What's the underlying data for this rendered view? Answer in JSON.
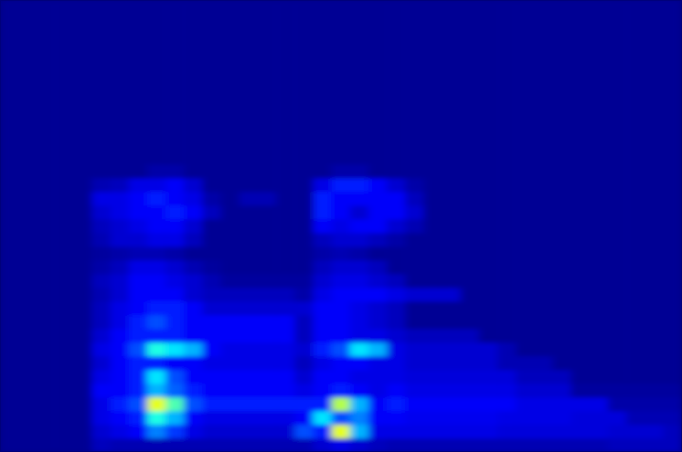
{
  "chart_data": {
    "type": "heatmap",
    "tick_labels": false,
    "color": "jet",
    "xlim": [
      0,
      37
    ],
    "ylim": [
      0,
      33
    ],
    "zlim": [
      0,
      1
    ],
    "z": [
      [
        0.02,
        0.02,
        0.02,
        0.02,
        0.02,
        0.06,
        0.05,
        0.05,
        0.05,
        0.05,
        0.05,
        0.05,
        0.05,
        0.05,
        0.05,
        0.05,
        0.05,
        0.08,
        0.1,
        0.08,
        0.06,
        0.05,
        0.05,
        0.05,
        0.05,
        0.05,
        0.05,
        0.05,
        0.05,
        0.05,
        0.05,
        0.05,
        0.05,
        0.06,
        0.06,
        0.06,
        0.06
      ],
      [
        0.02,
        0.02,
        0.02,
        0.02,
        0.02,
        0.08,
        0.1,
        0.12,
        0.25,
        0.18,
        0.1,
        0.08,
        0.08,
        0.08,
        0.08,
        0.08,
        0.2,
        0.15,
        0.6,
        0.3,
        0.1,
        0.1,
        0.1,
        0.1,
        0.1,
        0.1,
        0.1,
        0.09,
        0.09,
        0.09,
        0.09,
        0.09,
        0.09,
        0.08,
        0.08,
        0.08,
        0.06
      ],
      [
        0.02,
        0.02,
        0.02,
        0.02,
        0.02,
        0.1,
        0.12,
        0.15,
        0.4,
        0.3,
        0.12,
        0.1,
        0.1,
        0.1,
        0.1,
        0.1,
        0.12,
        0.35,
        0.2,
        0.25,
        0.12,
        0.12,
        0.11,
        0.11,
        0.11,
        0.11,
        0.11,
        0.1,
        0.1,
        0.1,
        0.1,
        0.09,
        0.09,
        0.09,
        0.05,
        0.05,
        0.05
      ],
      [
        0.02,
        0.02,
        0.02,
        0.02,
        0.02,
        0.1,
        0.15,
        0.2,
        0.6,
        0.45,
        0.2,
        0.15,
        0.15,
        0.15,
        0.15,
        0.15,
        0.15,
        0.15,
        0.55,
        0.3,
        0.12,
        0.15,
        0.12,
        0.12,
        0.12,
        0.12,
        0.12,
        0.12,
        0.1,
        0.1,
        0.1,
        0.1,
        0.1,
        0.04,
        0.04,
        0.04,
        0.04
      ],
      [
        0.02,
        0.02,
        0.02,
        0.02,
        0.02,
        0.12,
        0.12,
        0.15,
        0.3,
        0.22,
        0.15,
        0.12,
        0.12,
        0.12,
        0.12,
        0.12,
        0.1,
        0.12,
        0.15,
        0.12,
        0.1,
        0.12,
        0.1,
        0.1,
        0.1,
        0.1,
        0.1,
        0.1,
        0.08,
        0.08,
        0.08,
        0.03,
        0.03,
        0.03,
        0.03,
        0.03,
        0.03
      ],
      [
        0.02,
        0.02,
        0.02,
        0.02,
        0.02,
        0.1,
        0.12,
        0.15,
        0.35,
        0.2,
        0.12,
        0.12,
        0.12,
        0.12,
        0.12,
        0.12,
        0.08,
        0.12,
        0.12,
        0.1,
        0.1,
        0.1,
        0.09,
        0.09,
        0.09,
        0.09,
        0.09,
        0.09,
        0.06,
        0.06,
        0.06,
        0.02,
        0.02,
        0.02,
        0.02,
        0.02,
        0.02
      ],
      [
        0.02,
        0.02,
        0.02,
        0.02,
        0.02,
        0.08,
        0.12,
        0.15,
        0.15,
        0.12,
        0.12,
        0.1,
        0.1,
        0.1,
        0.1,
        0.1,
        0.06,
        0.1,
        0.12,
        0.12,
        0.1,
        0.1,
        0.08,
        0.08,
        0.08,
        0.08,
        0.08,
        0.05,
        0.05,
        0.05,
        0.02,
        0.02,
        0.02,
        0.02,
        0.02,
        0.02,
        0.02
      ],
      [
        0.02,
        0.02,
        0.02,
        0.02,
        0.02,
        0.1,
        0.12,
        0.2,
        0.4,
        0.35,
        0.3,
        0.12,
        0.1,
        0.1,
        0.1,
        0.1,
        0.08,
        0.15,
        0.2,
        0.35,
        0.3,
        0.1,
        0.08,
        0.08,
        0.08,
        0.08,
        0.08,
        0.05,
        0.02,
        0.02,
        0.02,
        0.02,
        0.02,
        0.02,
        0.02,
        0.02,
        0.02
      ],
      [
        0.02,
        0.02,
        0.02,
        0.02,
        0.02,
        0.08,
        0.12,
        0.15,
        0.15,
        0.15,
        0.12,
        0.12,
        0.12,
        0.12,
        0.12,
        0.12,
        0.06,
        0.12,
        0.12,
        0.1,
        0.1,
        0.08,
        0.06,
        0.06,
        0.06,
        0.06,
        0.02,
        0.02,
        0.02,
        0.02,
        0.02,
        0.02,
        0.02,
        0.02,
        0.02,
        0.02,
        0.02
      ],
      [
        0.02,
        0.02,
        0.02,
        0.02,
        0.02,
        0.06,
        0.1,
        0.15,
        0.2,
        0.15,
        0.12,
        0.12,
        0.12,
        0.12,
        0.12,
        0.12,
        0.06,
        0.12,
        0.12,
        0.1,
        0.08,
        0.06,
        0.02,
        0.02,
        0.02,
        0.02,
        0.02,
        0.02,
        0.02,
        0.02,
        0.02,
        0.02,
        0.02,
        0.02,
        0.02,
        0.02,
        0.02
      ],
      [
        0.02,
        0.02,
        0.02,
        0.02,
        0.02,
        0.06,
        0.1,
        0.12,
        0.15,
        0.15,
        0.12,
        0.08,
        0.08,
        0.08,
        0.08,
        0.08,
        0.08,
        0.12,
        0.12,
        0.1,
        0.08,
        0.06,
        0.02,
        0.02,
        0.02,
        0.02,
        0.02,
        0.02,
        0.02,
        0.02,
        0.02,
        0.02,
        0.02,
        0.02,
        0.02,
        0.02,
        0.02
      ],
      [
        0.02,
        0.02,
        0.02,
        0.02,
        0.02,
        0.05,
        0.08,
        0.12,
        0.12,
        0.12,
        0.08,
        0.06,
        0.06,
        0.06,
        0.06,
        0.06,
        0.04,
        0.1,
        0.12,
        0.12,
        0.12,
        0.1,
        0.08,
        0.08,
        0.08,
        0.02,
        0.02,
        0.02,
        0.02,
        0.02,
        0.02,
        0.02,
        0.02,
        0.02,
        0.02,
        0.02,
        0.02
      ],
      [
        0.02,
        0.02,
        0.02,
        0.02,
        0.02,
        0.06,
        0.08,
        0.12,
        0.12,
        0.1,
        0.08,
        0.05,
        0.03,
        0.03,
        0.03,
        0.03,
        0.03,
        0.08,
        0.1,
        0.1,
        0.08,
        0.06,
        0.02,
        0.02,
        0.02,
        0.02,
        0.02,
        0.02,
        0.02,
        0.02,
        0.02,
        0.02,
        0.02,
        0.02,
        0.02,
        0.02,
        0.02
      ],
      [
        0.02,
        0.02,
        0.02,
        0.02,
        0.02,
        0.04,
        0.06,
        0.1,
        0.1,
        0.08,
        0.05,
        0.03,
        0.02,
        0.02,
        0.02,
        0.02,
        0.02,
        0.06,
        0.08,
        0.08,
        0.06,
        0.02,
        0.02,
        0.02,
        0.02,
        0.02,
        0.02,
        0.02,
        0.02,
        0.02,
        0.02,
        0.02,
        0.02,
        0.02,
        0.02,
        0.02,
        0.02
      ],
      [
        0.02,
        0.02,
        0.02,
        0.02,
        0.02,
        0.03,
        0.04,
        0.05,
        0.05,
        0.04,
        0.02,
        0.02,
        0.02,
        0.02,
        0.02,
        0.02,
        0.02,
        0.04,
        0.05,
        0.04,
        0.02,
        0.02,
        0.02,
        0.02,
        0.02,
        0.02,
        0.02,
        0.02,
        0.02,
        0.02,
        0.02,
        0.02,
        0.02,
        0.02,
        0.02,
        0.02,
        0.02
      ],
      [
        0.02,
        0.02,
        0.02,
        0.02,
        0.02,
        0.05,
        0.08,
        0.08,
        0.1,
        0.1,
        0.06,
        0.02,
        0.02,
        0.02,
        0.02,
        0.02,
        0.02,
        0.06,
        0.08,
        0.08,
        0.06,
        0.04,
        0.02,
        0.02,
        0.02,
        0.02,
        0.02,
        0.02,
        0.02,
        0.02,
        0.02,
        0.02,
        0.02,
        0.02,
        0.02,
        0.02,
        0.02
      ],
      [
        0.02,
        0.02,
        0.02,
        0.02,
        0.02,
        0.06,
        0.08,
        0.1,
        0.12,
        0.12,
        0.08,
        0.02,
        0.02,
        0.02,
        0.02,
        0.02,
        0.02,
        0.12,
        0.1,
        0.12,
        0.12,
        0.08,
        0.05,
        0.02,
        0.02,
        0.02,
        0.02,
        0.02,
        0.02,
        0.02,
        0.02,
        0.02,
        0.02,
        0.02,
        0.02,
        0.02,
        0.02
      ],
      [
        0.02,
        0.02,
        0.02,
        0.02,
        0.02,
        0.08,
        0.1,
        0.12,
        0.12,
        0.15,
        0.12,
        0.06,
        0.02,
        0.02,
        0.02,
        0.02,
        0.02,
        0.15,
        0.12,
        0.08,
        0.12,
        0.12,
        0.08,
        0.02,
        0.02,
        0.02,
        0.02,
        0.02,
        0.02,
        0.02,
        0.02,
        0.02,
        0.02,
        0.02,
        0.02,
        0.02,
        0.02
      ],
      [
        0.02,
        0.02,
        0.02,
        0.02,
        0.02,
        0.1,
        0.1,
        0.12,
        0.15,
        0.12,
        0.1,
        0.04,
        0.02,
        0.05,
        0.05,
        0.02,
        0.02,
        0.15,
        0.12,
        0.12,
        0.12,
        0.12,
        0.06,
        0.02,
        0.02,
        0.02,
        0.02,
        0.02,
        0.02,
        0.02,
        0.02,
        0.02,
        0.02,
        0.02,
        0.02,
        0.02,
        0.02
      ],
      [
        0.02,
        0.02,
        0.02,
        0.02,
        0.02,
        0.05,
        0.06,
        0.1,
        0.1,
        0.12,
        0.08,
        0.02,
        0.02,
        0.02,
        0.02,
        0.02,
        0.02,
        0.1,
        0.15,
        0.15,
        0.12,
        0.08,
        0.04,
        0.02,
        0.02,
        0.02,
        0.02,
        0.02,
        0.02,
        0.02,
        0.02,
        0.02,
        0.02,
        0.02,
        0.02,
        0.02,
        0.02
      ],
      [
        0.02,
        0.02,
        0.02,
        0.02,
        0.02,
        0.02,
        0.02,
        0.02,
        0.04,
        0.04,
        0.02,
        0.02,
        0.02,
        0.02,
        0.02,
        0.02,
        0.02,
        0.02,
        0.04,
        0.04,
        0.02,
        0.02,
        0.02,
        0.02,
        0.02,
        0.02,
        0.02,
        0.02,
        0.02,
        0.02,
        0.02,
        0.02,
        0.02,
        0.02,
        0.02,
        0.02,
        0.02
      ],
      [
        0.02,
        0.02,
        0.02,
        0.02,
        0.02,
        0.02,
        0.02,
        0.02,
        0.02,
        0.02,
        0.02,
        0.02,
        0.02,
        0.02,
        0.02,
        0.02,
        0.02,
        0.02,
        0.02,
        0.02,
        0.02,
        0.02,
        0.02,
        0.02,
        0.02,
        0.02,
        0.02,
        0.02,
        0.02,
        0.02,
        0.02,
        0.02,
        0.02,
        0.02,
        0.02,
        0.02,
        0.02
      ],
      [
        0.02,
        0.02,
        0.02,
        0.02,
        0.02,
        0.02,
        0.02,
        0.02,
        0.02,
        0.02,
        0.02,
        0.02,
        0.02,
        0.02,
        0.02,
        0.02,
        0.02,
        0.02,
        0.02,
        0.02,
        0.02,
        0.02,
        0.02,
        0.02,
        0.02,
        0.02,
        0.02,
        0.02,
        0.02,
        0.02,
        0.02,
        0.02,
        0.02,
        0.02,
        0.02,
        0.02,
        0.02
      ],
      [
        0.02,
        0.02,
        0.02,
        0.02,
        0.02,
        0.02,
        0.02,
        0.02,
        0.02,
        0.02,
        0.02,
        0.02,
        0.02,
        0.02,
        0.02,
        0.02,
        0.02,
        0.02,
        0.02,
        0.02,
        0.02,
        0.02,
        0.02,
        0.02,
        0.02,
        0.02,
        0.02,
        0.02,
        0.02,
        0.02,
        0.02,
        0.02,
        0.02,
        0.02,
        0.02,
        0.02,
        0.02
      ],
      [
        0.02,
        0.02,
        0.02,
        0.02,
        0.02,
        0.02,
        0.02,
        0.02,
        0.02,
        0.02,
        0.02,
        0.02,
        0.02,
        0.02,
        0.02,
        0.02,
        0.02,
        0.02,
        0.02,
        0.02,
        0.02,
        0.02,
        0.02,
        0.02,
        0.02,
        0.02,
        0.02,
        0.02,
        0.02,
        0.02,
        0.02,
        0.02,
        0.02,
        0.02,
        0.02,
        0.02,
        0.02
      ],
      [
        0.02,
        0.02,
        0.02,
        0.02,
        0.02,
        0.02,
        0.02,
        0.02,
        0.02,
        0.02,
        0.02,
        0.02,
        0.02,
        0.02,
        0.02,
        0.02,
        0.02,
        0.02,
        0.02,
        0.02,
        0.02,
        0.02,
        0.02,
        0.02,
        0.02,
        0.02,
        0.02,
        0.02,
        0.02,
        0.02,
        0.02,
        0.02,
        0.02,
        0.02,
        0.02,
        0.02,
        0.02
      ],
      [
        0.02,
        0.02,
        0.02,
        0.02,
        0.02,
        0.02,
        0.02,
        0.02,
        0.02,
        0.02,
        0.02,
        0.02,
        0.02,
        0.02,
        0.02,
        0.02,
        0.02,
        0.02,
        0.02,
        0.02,
        0.02,
        0.02,
        0.02,
        0.02,
        0.02,
        0.02,
        0.02,
        0.02,
        0.02,
        0.02,
        0.02,
        0.02,
        0.02,
        0.02,
        0.02,
        0.02,
        0.02
      ],
      [
        0.02,
        0.02,
        0.02,
        0.02,
        0.02,
        0.02,
        0.02,
        0.02,
        0.02,
        0.02,
        0.02,
        0.02,
        0.02,
        0.02,
        0.02,
        0.02,
        0.02,
        0.02,
        0.02,
        0.02,
        0.02,
        0.02,
        0.02,
        0.02,
        0.02,
        0.02,
        0.02,
        0.02,
        0.02,
        0.02,
        0.02,
        0.02,
        0.02,
        0.02,
        0.02,
        0.02,
        0.02
      ],
      [
        0.02,
        0.02,
        0.02,
        0.02,
        0.02,
        0.02,
        0.02,
        0.02,
        0.02,
        0.02,
        0.02,
        0.02,
        0.02,
        0.02,
        0.02,
        0.02,
        0.02,
        0.02,
        0.02,
        0.02,
        0.02,
        0.02,
        0.02,
        0.02,
        0.02,
        0.02,
        0.02,
        0.02,
        0.02,
        0.02,
        0.02,
        0.02,
        0.02,
        0.02,
        0.02,
        0.02,
        0.02
      ],
      [
        0.02,
        0.02,
        0.02,
        0.02,
        0.02,
        0.02,
        0.02,
        0.02,
        0.02,
        0.02,
        0.02,
        0.02,
        0.02,
        0.02,
        0.02,
        0.02,
        0.02,
        0.02,
        0.02,
        0.02,
        0.02,
        0.02,
        0.02,
        0.02,
        0.02,
        0.02,
        0.02,
        0.02,
        0.02,
        0.02,
        0.02,
        0.02,
        0.02,
        0.02,
        0.02,
        0.02,
        0.02
      ],
      [
        0.02,
        0.02,
        0.02,
        0.02,
        0.02,
        0.02,
        0.02,
        0.02,
        0.02,
        0.02,
        0.02,
        0.02,
        0.02,
        0.02,
        0.02,
        0.02,
        0.02,
        0.02,
        0.02,
        0.02,
        0.02,
        0.02,
        0.02,
        0.02,
        0.02,
        0.02,
        0.02,
        0.02,
        0.02,
        0.02,
        0.02,
        0.02,
        0.02,
        0.02,
        0.02,
        0.02,
        0.02
      ],
      [
        0.02,
        0.02,
        0.02,
        0.02,
        0.02,
        0.02,
        0.02,
        0.02,
        0.02,
        0.02,
        0.02,
        0.02,
        0.02,
        0.02,
        0.02,
        0.02,
        0.02,
        0.02,
        0.02,
        0.02,
        0.02,
        0.02,
        0.02,
        0.02,
        0.02,
        0.02,
        0.02,
        0.02,
        0.02,
        0.02,
        0.02,
        0.02,
        0.02,
        0.02,
        0.02,
        0.02,
        0.02
      ],
      [
        0.02,
        0.02,
        0.02,
        0.02,
        0.02,
        0.02,
        0.02,
        0.02,
        0.02,
        0.02,
        0.02,
        0.02,
        0.02,
        0.02,
        0.02,
        0.02,
        0.02,
        0.02,
        0.02,
        0.02,
        0.02,
        0.02,
        0.02,
        0.02,
        0.02,
        0.02,
        0.02,
        0.02,
        0.02,
        0.02,
        0.02,
        0.02,
        0.02,
        0.02,
        0.02,
        0.02,
        0.02
      ]
    ]
  }
}
